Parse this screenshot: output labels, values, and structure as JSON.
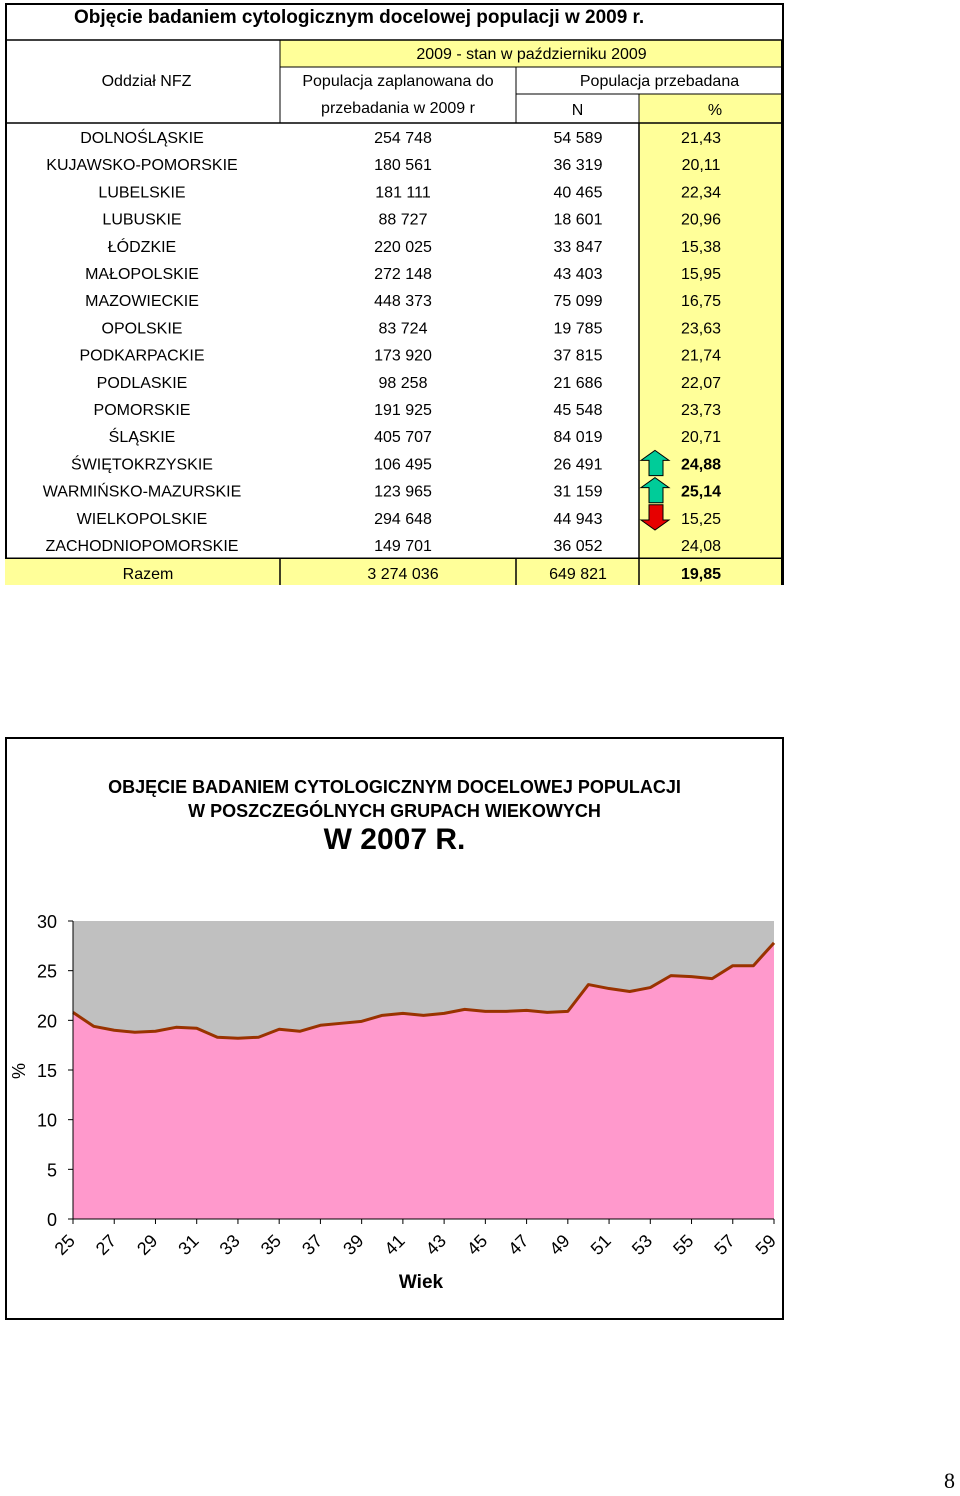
{
  "table": {
    "title": "Objęcie badaniem cytologicznym docelowej populacji w 2009 r.",
    "header": {
      "period": "2009 - stan w październiku 2009",
      "branch": "Oddział NFZ",
      "planned_line1": "Populacja zaplanowana do",
      "planned_line2": "przebadania w 2009 r",
      "examined": "Populacja przebadana",
      "n": "N",
      "pct": "%"
    },
    "rows": [
      {
        "name": "DOLNOŚLĄSKIE",
        "planned": "254 748",
        "n": "54 589",
        "pct": "21,43"
      },
      {
        "name": "KUJAWSKO-POMORSKIE",
        "planned": "180 561",
        "n": "36 319",
        "pct": "20,11"
      },
      {
        "name": "LUBELSKIE",
        "planned": "181 111",
        "n": "40 465",
        "pct": "22,34"
      },
      {
        "name": "LUBUSKIE",
        "planned": "88 727",
        "n": "18 601",
        "pct": "20,96"
      },
      {
        "name": "ŁÓDZKIE",
        "planned": "220 025",
        "n": "33 847",
        "pct": "15,38"
      },
      {
        "name": "MAŁOPOLSKIE",
        "planned": "272 148",
        "n": "43 403",
        "pct": "15,95"
      },
      {
        "name": "MAZOWIECKIE",
        "planned": "448 373",
        "n": "75 099",
        "pct": "16,75"
      },
      {
        "name": "OPOLSKIE",
        "planned": "83 724",
        "n": "19 785",
        "pct": "23,63"
      },
      {
        "name": "PODKARPACKIE",
        "planned": "173 920",
        "n": "37 815",
        "pct": "21,74"
      },
      {
        "name": "PODLASKIE",
        "planned": "98 258",
        "n": "21 686",
        "pct": "22,07"
      },
      {
        "name": "POMORSKIE",
        "planned": "191 925",
        "n": "45 548",
        "pct": "23,73"
      },
      {
        "name": "ŚLĄSKIE",
        "planned": "405 707",
        "n": "84 019",
        "pct": "20,71"
      },
      {
        "name": "ŚWIĘTOKRZYSKIE",
        "planned": "106 495",
        "n": "26 491",
        "pct": "24,88",
        "bold": true,
        "arrow": "up"
      },
      {
        "name": "WARMIŃSKO-MAZURSKIE",
        "planned": "123 965",
        "n": "31 159",
        "pct": "25,14",
        "bold": true,
        "arrow": "up"
      },
      {
        "name": "WIELKOPOLSKIE",
        "planned": "294 648",
        "n": "44 943",
        "pct": "15,25",
        "arrow": "down"
      },
      {
        "name": "ZACHODNIOPOMORSKIE",
        "planned": "149 701",
        "n": "36 052",
        "pct": "24,08"
      }
    ],
    "total": {
      "name": "Razem",
      "planned": "3 274 036",
      "n": "649 821",
      "pct": "19,85"
    },
    "colors": {
      "highlight": "#ffff99",
      "arrow_up": "#00cc99",
      "arrow_down": "#e60000"
    }
  },
  "chart_data": {
    "type": "area",
    "title_line1": "OBJĘCIE BADANIEM CYTOLOGICZNYM DOCELOWEJ POPULACJI",
    "title_line2": "W POSZCZEGÓLNYCH GRUPACH WIEKOWYCH",
    "title_line3": "W 2007 R.",
    "xlabel": "Wiek",
    "ylabel": "%",
    "ylim": [
      0,
      30
    ],
    "yticks": [
      0,
      5,
      10,
      15,
      20,
      25,
      30
    ],
    "xlim": [
      25,
      59
    ],
    "xticks": [
      25,
      27,
      29,
      31,
      33,
      35,
      37,
      39,
      41,
      43,
      45,
      47,
      49,
      51,
      53,
      55,
      57,
      59
    ],
    "x": [
      25,
      26,
      27,
      28,
      29,
      30,
      31,
      32,
      33,
      34,
      35,
      36,
      37,
      38,
      39,
      40,
      41,
      42,
      43,
      44,
      45,
      46,
      47,
      48,
      49,
      50,
      51,
      52,
      53,
      54,
      55,
      56,
      57,
      58,
      59
    ],
    "values": [
      20.8,
      19.4,
      19.0,
      18.8,
      18.9,
      19.3,
      19.2,
      18.3,
      18.2,
      18.3,
      19.1,
      18.9,
      19.5,
      19.7,
      19.9,
      20.5,
      20.7,
      20.5,
      20.7,
      21.1,
      20.9,
      20.9,
      21.0,
      20.8,
      20.9,
      23.6,
      23.2,
      22.9,
      23.3,
      24.5,
      24.4,
      24.2,
      25.5,
      25.5,
      27.8
    ],
    "grid": false,
    "colors": {
      "fill": "#ff99cc",
      "line": "#993300",
      "plot_bg": "#c0c0c0"
    }
  },
  "page_number": "8"
}
